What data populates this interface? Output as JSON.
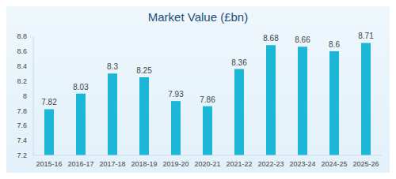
{
  "chart_data": {
    "type": "bar",
    "title": "Market Value (£bn)",
    "categories": [
      "2015-16",
      "2016-17",
      "2017-18",
      "2018-19",
      "2019-20",
      "2020-21",
      "2021-22",
      "2022-23",
      "2023-24",
      "2024-25",
      "2025-26"
    ],
    "values": [
      7.82,
      8.03,
      8.3,
      8.25,
      7.93,
      7.86,
      8.36,
      8.68,
      8.66,
      8.6,
      8.71
    ],
    "color": "#1cb7d6",
    "ylim": [
      7.2,
      8.8
    ],
    "yticks": [
      7.2,
      7.4,
      7.6,
      7.8,
      8,
      8.2,
      8.4,
      8.6,
      8.8
    ],
    "grid": false,
    "data_labels": true
  }
}
